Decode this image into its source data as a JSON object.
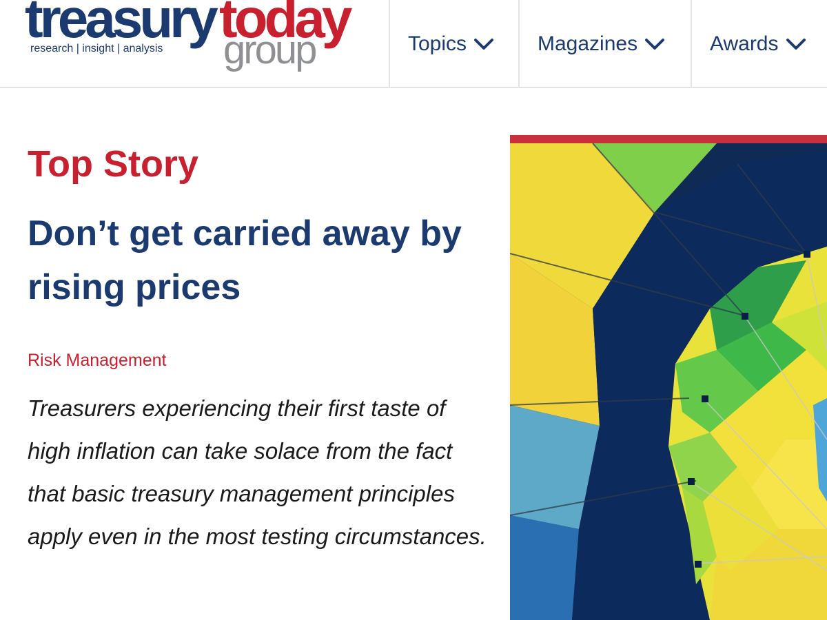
{
  "logo": {
    "word1": "treasury",
    "word2": "today",
    "word3": "group",
    "tagline": "research | insight | analysis"
  },
  "nav": {
    "items": [
      {
        "label": "Topics",
        "icon": "chevron-down-icon"
      },
      {
        "label": "Magazines",
        "icon": "chevron-down-icon"
      },
      {
        "label": "Awards",
        "icon": "chevron-down-icon"
      }
    ]
  },
  "story": {
    "kicker": "Top Story",
    "headline": "Don’t get carried away by rising prices",
    "category": "Risk Management",
    "standfirst": "Treasurers experiencing their first taste of high inflation can take solace from the fact that basic treasury management principles apply even in the most testing circumstances."
  },
  "colors": {
    "brand_navy": "#1b3a6f",
    "brand_red": "#c9202f",
    "brand_grey": "#8e9093"
  }
}
